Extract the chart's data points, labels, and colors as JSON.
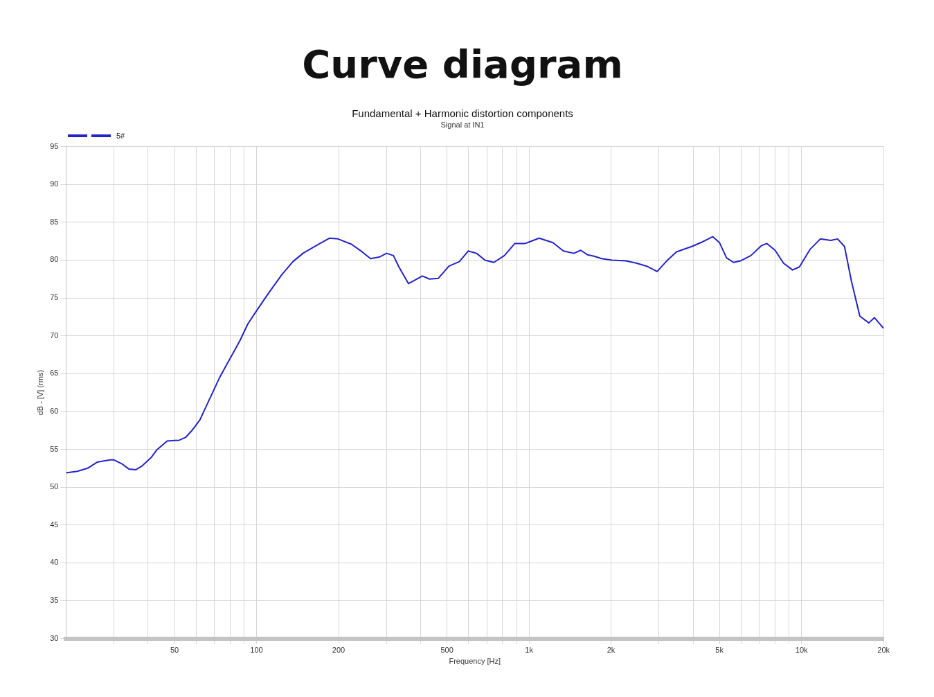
{
  "chart_data": {
    "type": "line",
    "title": "Curve diagram",
    "subtitle": "Fundamental + Harmonic distortion components",
    "annotations": [
      "Signal at IN1"
    ],
    "xlabel": "Frequency [Hz]",
    "ylabel": "dB - [V] (rms)",
    "log": "x",
    "grid": true,
    "legend": "top left",
    "marker": "none",
    "line_style": "solid",
    "xlim": [
      20,
      20000
    ],
    "ylim": [
      30,
      95
    ],
    "xticks": [
      {
        "value": 30,
        "label": null
      },
      {
        "value": 40,
        "label": null
      },
      50,
      {
        "value": 60,
        "label": null
      },
      {
        "value": 70,
        "label": null
      },
      {
        "value": 80,
        "label": null
      },
      {
        "value": 90,
        "label": null
      },
      100,
      200,
      {
        "value": 300,
        "label": null
      },
      {
        "value": 400,
        "label": null
      },
      500,
      {
        "value": 600,
        "label": null
      },
      {
        "value": 700,
        "label": null
      },
      {
        "value": 800,
        "label": null
      },
      {
        "value": 900,
        "label": null
      },
      {
        "value": 1000,
        "label": "1k"
      },
      {
        "value": 2000,
        "label": "2k"
      },
      {
        "value": 3000,
        "label": null
      },
      {
        "value": 4000,
        "label": null
      },
      {
        "value": 5000,
        "label": "5k"
      },
      {
        "value": 6000,
        "label": null
      },
      {
        "value": 7000,
        "label": null
      },
      {
        "value": 8000,
        "label": null
      },
      {
        "value": 9000,
        "label": null
      },
      {
        "value": 10000,
        "label": "10k"
      },
      {
        "value": 20000,
        "label": "20k"
      }
    ],
    "yticks": [
      30,
      35,
      40,
      45,
      50,
      55,
      60,
      65,
      70,
      75,
      80,
      85,
      90,
      95
    ],
    "series": [
      {
        "name": "5#",
        "color": "#2323c8",
        "x": [
          20,
          22,
          24,
          26,
          29,
          30,
          32,
          34,
          36,
          38,
          41,
          43,
          47,
          52,
          55,
          58,
          62,
          65,
          69,
          73,
          78,
          82,
          87,
          93,
          100,
          110,
          124,
          136,
          148,
          167,
          185,
          199,
          223,
          244,
          262,
          282,
          300,
          318,
          333,
          361,
          383,
          406,
          431,
          465,
          508,
          555,
          598,
          642,
          689,
          743,
          812,
          887,
          968,
          1089,
          1224,
          1337,
          1460,
          1549,
          1641,
          1741,
          1846,
          2015,
          2266,
          2476,
          2704,
          2952,
          3223,
          3477,
          3955,
          4323,
          4720,
          5002,
          5305,
          5627,
          5968,
          6520,
          7118,
          7462,
          8000,
          8586,
          9265,
          9825,
          10737,
          11722,
          12800,
          13563,
          14380,
          15250,
          16365,
          17668,
          18509,
          20000
        ],
        "values": [
          51.9,
          52.1,
          52.5,
          53.3,
          53.6,
          53.6,
          53.1,
          52.4,
          52.3,
          52.8,
          53.9,
          54.9,
          56.1,
          56.2,
          56.6,
          57.5,
          58.9,
          60.5,
          62.5,
          64.4,
          66.3,
          67.7,
          69.4,
          71.6,
          73.3,
          75.5,
          78.1,
          79.8,
          80.9,
          82.0,
          82.9,
          82.8,
          82.1,
          81.1,
          80.2,
          80.4,
          80.9,
          80.6,
          79.1,
          76.9,
          77.4,
          77.9,
          77.5,
          77.6,
          79.2,
          79.8,
          81.2,
          80.9,
          80.0,
          79.7,
          80.6,
          82.2,
          82.2,
          82.9,
          82.3,
          81.2,
          80.9,
          81.3,
          80.7,
          80.5,
          80.2,
          80.0,
          79.9,
          79.6,
          79.2,
          78.5,
          80.0,
          81.1,
          81.8,
          82.4,
          83.1,
          82.3,
          80.3,
          79.7,
          79.9,
          80.6,
          81.9,
          82.2,
          81.3,
          79.6,
          78.7,
          79.1,
          81.4,
          82.8,
          82.6,
          82.8,
          81.8,
          77.2,
          72.6,
          71.7,
          72.4,
          71.0
        ]
      }
    ]
  }
}
